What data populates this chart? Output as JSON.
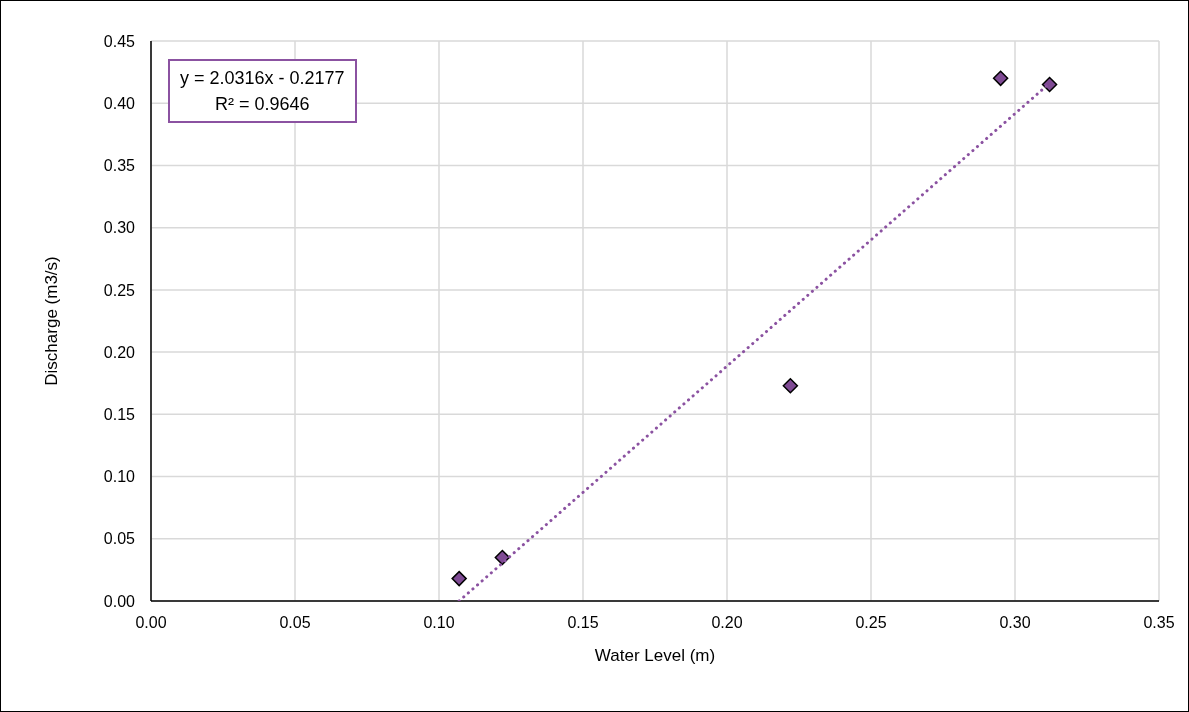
{
  "chart_data": {
    "type": "scatter",
    "xlabel": "Water Level (m)",
    "ylabel": "Discharge (m3/s)",
    "annotations": [
      "y = 2.0316x - 0.2177",
      "R² = 0.9646"
    ],
    "series": [
      {
        "type": "scatter",
        "x": [
          0.107,
          0.122,
          0.222,
          0.295,
          0.312
        ],
        "values": [
          0.018,
          0.035,
          0.173,
          0.42,
          0.415
        ],
        "color": "#7f4a94",
        "marker": "diamond"
      },
      {
        "type": "line",
        "x": [
          0.107,
          0.312
        ],
        "values": [
          0.0,
          0.416
        ],
        "color": "#8b52a1",
        "line_style": "dotted",
        "marker": "none"
      }
    ],
    "xlim": [
      0,
      0.35
    ],
    "xticks": [
      {
        "value": 0,
        "label": "0.00"
      },
      {
        "value": 0.05,
        "label": "0.05"
      },
      {
        "value": 0.1,
        "label": "0.10"
      },
      {
        "value": 0.15,
        "label": "0.15"
      },
      {
        "value": 0.2,
        "label": "0.20"
      },
      {
        "value": 0.25,
        "label": "0.25"
      },
      {
        "value": 0.3,
        "label": "0.30"
      },
      {
        "value": 0.35,
        "label": "0.35"
      }
    ],
    "ylim": [
      0,
      0.45
    ],
    "yticks": [
      {
        "value": 0,
        "label": "0.00"
      },
      {
        "value": 0.05,
        "label": "0.05"
      },
      {
        "value": 0.1,
        "label": "0.10"
      },
      {
        "value": 0.15,
        "label": "0.15"
      },
      {
        "value": 0.2,
        "label": "0.20"
      },
      {
        "value": 0.25,
        "label": "0.25"
      },
      {
        "value": 0.3,
        "label": "0.30"
      },
      {
        "value": 0.35,
        "label": "0.35"
      },
      {
        "value": 0.4,
        "label": "0.40"
      },
      {
        "value": 0.45,
        "label": "0.45"
      }
    ],
    "grid": true
  }
}
